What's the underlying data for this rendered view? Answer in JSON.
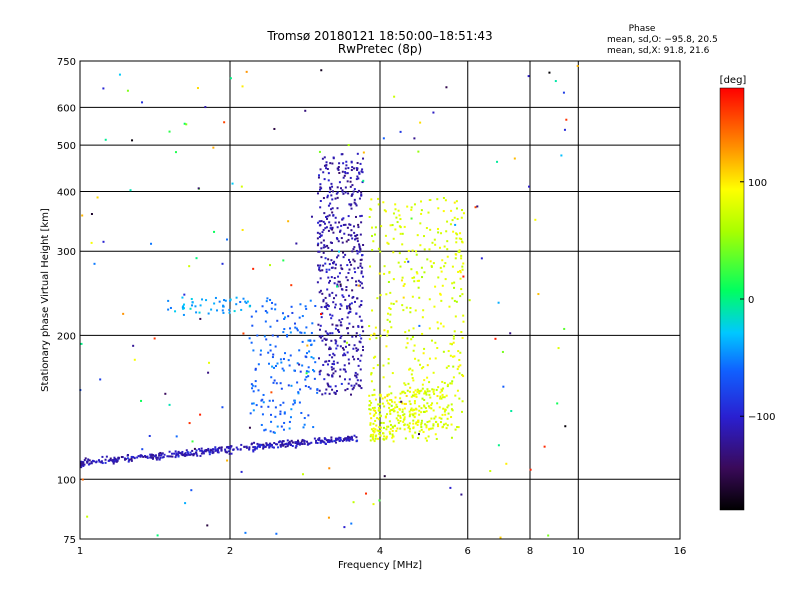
{
  "chart_data": {
    "type": "scatter",
    "title": "Tromsø 20180121 18:50:00–18:51:43",
    "subtitle": "RwPretec (8p)",
    "xlabel": "Frequency [MHz]",
    "ylabel": "Stationary phase Virtual Height [km]",
    "x_scale": "log",
    "y_scale": "log",
    "xlim": [
      1,
      16
    ],
    "ylim": [
      75,
      750
    ],
    "x_ticks": [
      "1",
      "2",
      "4",
      "6",
      "8",
      "10",
      "16"
    ],
    "y_ticks": [
      "75",
      "100",
      "200",
      "300",
      "400",
      "500",
      "600",
      "750"
    ],
    "grid": true,
    "phase_box": {
      "title": "Phase",
      "line_o": "mean, sd,O: −95.8, 20.5",
      "line_x": "mean, sd,X:  91.8, 21.6"
    },
    "colorbar": {
      "label": "[deg]",
      "ticks": [
        "100",
        "0",
        "−100"
      ],
      "tick_values": [
        100,
        0,
        -100
      ],
      "range": [
        -180,
        180
      ]
    },
    "series_clusters": [
      {
        "x_range": [
          1.0,
          3.6
        ],
        "y_range": [
          107,
          120
        ],
        "phase": -110,
        "note": "lower E/F trace"
      },
      {
        "x_range": [
          3.0,
          3.7
        ],
        "y_range": [
          150,
          480
        ],
        "phase": -115
      },
      {
        "x_range": [
          3.8,
          5.9
        ],
        "y_range": [
          120,
          390
        ],
        "phase": 80
      },
      {
        "x_range": [
          2.2,
          3.0
        ],
        "y_range": [
          125,
          240
        ],
        "phase": -60
      },
      {
        "x_range": [
          1.5,
          2.2
        ],
        "y_range": [
          220,
          240
        ],
        "phase": -40
      }
    ]
  }
}
